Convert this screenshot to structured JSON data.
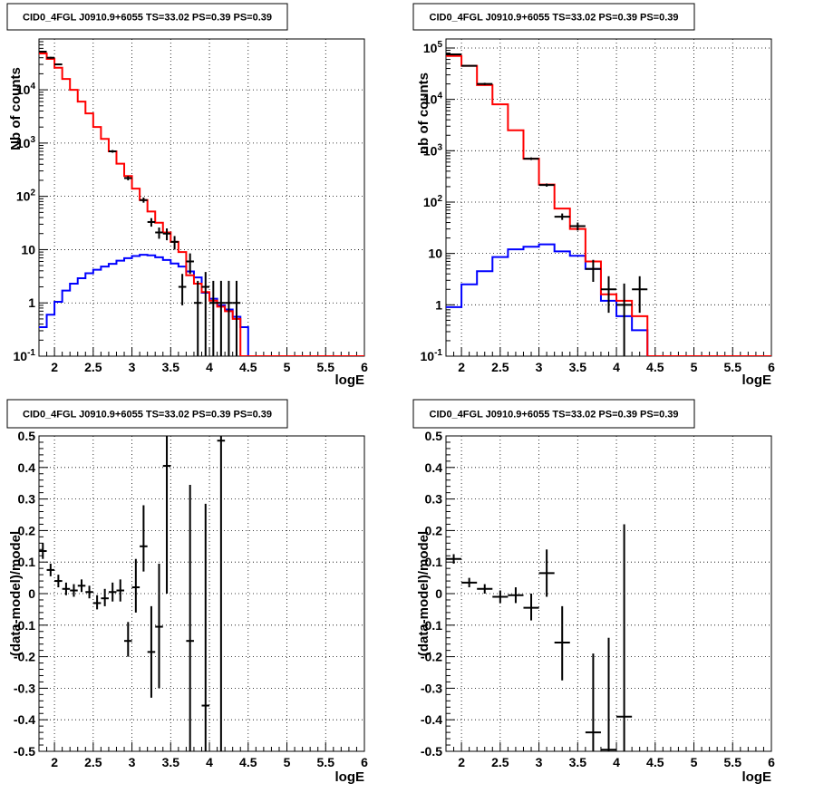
{
  "colors": {
    "data": "#000000",
    "total_model": "#ff0000",
    "source_model": "#0000ff",
    "grid": "#000000",
    "frame": "#000000"
  },
  "chart_data": [
    {
      "type": "line",
      "scale_y": "log",
      "title": "CID0_4FGL J0910.9+6055 TS=33.02 PS=0.39 PS=0.39",
      "xlabel": "logE",
      "ylabel": "Nb of counts",
      "xlim": [
        1.8,
        6
      ],
      "ylim": [
        0.1,
        90000
      ],
      "grid": true,
      "xticks": [
        "2",
        "2.5",
        "3",
        "3.5",
        "4",
        "4.5",
        "5",
        "5.5",
        "6"
      ],
      "yticks": [
        "10^-1",
        "1",
        "10",
        "10^2",
        "10^3",
        "10^4"
      ],
      "bin_edges": [
        1.8,
        1.9,
        2.0,
        2.1,
        2.2,
        2.3,
        2.4,
        2.5,
        2.6,
        2.7,
        2.8,
        2.9,
        3.0,
        3.1,
        3.2,
        3.3,
        3.4,
        3.5,
        3.6,
        3.7,
        3.8,
        3.9,
        4.0,
        4.1,
        4.2,
        4.3,
        4.4,
        4.5,
        4.6,
        4.7,
        4.8,
        4.9,
        5.0,
        5.1,
        5.2,
        5.3,
        5.4,
        5.5,
        5.6,
        5.7,
        5.8,
        5.9,
        6.0
      ],
      "series": [
        {
          "role": "total_model",
          "values": [
            48000,
            38000,
            26000,
            16000,
            10000,
            6000,
            3600,
            2000,
            1200,
            700,
            410,
            240,
            140,
            85,
            52,
            32,
            21,
            14,
            9,
            3.3,
            2.3,
            1.6,
            1.1,
            0.85,
            0.7,
            0.5,
            0.09,
            0.09,
            0.09,
            0.09,
            0.09,
            0.09,
            0.09,
            0.09,
            0.09,
            0.09,
            0.09,
            0.09,
            0.09,
            0.09,
            0.09,
            0.09
          ]
        },
        {
          "role": "source_model",
          "values": [
            0.35,
            0.6,
            1.05,
            1.7,
            2.3,
            2.9,
            3.6,
            4.2,
            4.8,
            5.4,
            6.2,
            6.9,
            7.6,
            8.0,
            7.8,
            7.2,
            6.4,
            5.5,
            4.8,
            3.9,
            3.0,
            1.55,
            1.2,
            0.9,
            0.75,
            0.55,
            0.35,
            0.09,
            0.09,
            0.09,
            0.09,
            0.09,
            0.09,
            0.09,
            0.09,
            0.09,
            0.09,
            0.09,
            0.09,
            0.09,
            0.09,
            0.09
          ]
        },
        {
          "role": "data",
          "points": [
            {
              "x": 1.85,
              "y": 52000,
              "lo": 50000,
              "hi": 54000
            },
            {
              "x": 1.95,
              "y": 40000,
              "lo": 38500,
              "hi": 41500
            },
            {
              "x": 2.05,
              "y": 30000,
              "lo": 29000,
              "hi": 31000
            },
            {
              "x": 2.75,
              "y": 700,
              "lo": 660,
              "hi": 740
            },
            {
              "x": 2.95,
              "y": 220,
              "lo": 200,
              "hi": 240
            },
            {
              "x": 3.15,
              "y": 85,
              "lo": 76,
              "hi": 95
            },
            {
              "x": 3.25,
              "y": 33,
              "lo": 27,
              "hi": 39
            },
            {
              "x": 3.35,
              "y": 21,
              "lo": 16,
              "hi": 26
            },
            {
              "x": 3.45,
              "y": 20,
              "lo": 15,
              "hi": 25
            },
            {
              "x": 3.55,
              "y": 14,
              "lo": 10,
              "hi": 18
            },
            {
              "x": 3.65,
              "y": 2,
              "lo": 0.9,
              "hi": 3.5
            },
            {
              "x": 3.75,
              "y": 6,
              "lo": 3.5,
              "hi": 8.5
            },
            {
              "x": 3.85,
              "y": 1,
              "lo": 0.1,
              "hi": 2.6
            },
            {
              "x": 3.95,
              "y": 2,
              "lo": 0.1,
              "hi": 3.8
            },
            {
              "x": 4.05,
              "y": 1,
              "lo": 0.1,
              "hi": 2.6
            },
            {
              "x": 4.15,
              "y": 1,
              "lo": 0.1,
              "hi": 2.6
            },
            {
              "x": 4.25,
              "y": 1,
              "lo": 0.1,
              "hi": 2.6
            },
            {
              "x": 4.35,
              "y": 1,
              "lo": 0.1,
              "hi": 2.6
            }
          ]
        }
      ]
    },
    {
      "type": "line",
      "scale_y": "log",
      "title": "CID0_4FGL J0910.9+6055 TS=33.02 PS=0.39 PS=0.39",
      "xlabel": "logE",
      "ylabel": "nb of counts",
      "xlim": [
        1.8,
        6
      ],
      "ylim": [
        0.1,
        150000
      ],
      "grid": true,
      "xticks": [
        "2",
        "2.5",
        "3",
        "3.5",
        "4",
        "4.5",
        "5",
        "5.5",
        "6"
      ],
      "yticks": [
        "10^-1",
        "1",
        "10",
        "10^2",
        "10^3",
        "10^4",
        "10^5"
      ],
      "bin_edges": [
        1.8,
        2.0,
        2.2,
        2.4,
        2.6,
        2.8,
        3.0,
        3.2,
        3.4,
        3.6,
        3.8,
        4.0,
        4.2,
        4.4,
        4.6,
        4.8,
        5.0,
        5.2,
        5.4,
        5.6,
        5.8,
        6.0
      ],
      "series": [
        {
          "role": "total_model",
          "values": [
            70000,
            45000,
            19000,
            8000,
            2500,
            700,
            220,
            75,
            30,
            7,
            1.6,
            1.2,
            0.6,
            0.1,
            0.09,
            0.09,
            0.09,
            0.09,
            0.09,
            0.09,
            0.09
          ]
        },
        {
          "role": "source_model",
          "values": [
            0.9,
            2.5,
            4.5,
            8.5,
            12,
            13.5,
            15,
            11,
            9,
            5,
            1.2,
            0.6,
            0.32,
            0.1,
            0.09,
            0.09,
            0.09,
            0.09,
            0.09,
            0.09,
            0.09
          ]
        },
        {
          "role": "data",
          "points": [
            {
              "x": 1.9,
              "y": 75000,
              "lo": 72000,
              "hi": 78000
            },
            {
              "x": 2.1,
              "y": 45000,
              "lo": 43500,
              "hi": 46500
            },
            {
              "x": 2.3,
              "y": 20000,
              "lo": 19000,
              "hi": 21000
            },
            {
              "x": 2.9,
              "y": 700,
              "lo": 660,
              "hi": 740
            },
            {
              "x": 3.1,
              "y": 215,
              "lo": 200,
              "hi": 230
            },
            {
              "x": 3.3,
              "y": 52,
              "lo": 45,
              "hi": 60
            },
            {
              "x": 3.5,
              "y": 34,
              "lo": 28,
              "hi": 40
            },
            {
              "x": 3.7,
              "y": 5,
              "lo": 2.8,
              "hi": 7.5
            },
            {
              "x": 3.9,
              "y": 2,
              "lo": 0.7,
              "hi": 3.6
            },
            {
              "x": 4.1,
              "y": 1,
              "lo": 0.1,
              "hi": 2.6
            },
            {
              "x": 4.3,
              "y": 2,
              "lo": 0.7,
              "hi": 3.6
            }
          ]
        }
      ]
    },
    {
      "type": "scatter",
      "title": "CID0_4FGL J0910.9+6055 TS=33.02 PS=0.39 PS=0.39",
      "xlabel": "logE",
      "ylabel": "(data-model)/model",
      "xlim": [
        1.8,
        6
      ],
      "ylim": [
        -0.5,
        0.5
      ],
      "grid": true,
      "xticks": [
        "2",
        "2.5",
        "3",
        "3.5",
        "4",
        "4.5",
        "5",
        "5.5",
        "6"
      ],
      "yticks": [
        "-0.5",
        "-0.4",
        "-0.3",
        "-0.2",
        "-0.1",
        "0",
        "0.1",
        "0.2",
        "0.3",
        "0.4",
        "0.5"
      ],
      "bin_width": 0.1,
      "points": [
        {
          "x": 1.85,
          "y": 0.135,
          "lo": 0.11,
          "hi": 0.16
        },
        {
          "x": 1.95,
          "y": 0.075,
          "lo": 0.055,
          "hi": 0.095
        },
        {
          "x": 2.05,
          "y": 0.04,
          "lo": 0.02,
          "hi": 0.06
        },
        {
          "x": 2.15,
          "y": 0.015,
          "lo": -0.005,
          "hi": 0.035
        },
        {
          "x": 2.25,
          "y": 0.01,
          "lo": -0.01,
          "hi": 0.03
        },
        {
          "x": 2.35,
          "y": 0.025,
          "lo": 0.005,
          "hi": 0.045
        },
        {
          "x": 2.45,
          "y": 0.005,
          "lo": -0.015,
          "hi": 0.025
        },
        {
          "x": 2.55,
          "y": -0.03,
          "lo": -0.05,
          "hi": -0.005
        },
        {
          "x": 2.65,
          "y": -0.015,
          "lo": -0.04,
          "hi": 0.015
        },
        {
          "x": 2.75,
          "y": 0.005,
          "lo": -0.025,
          "hi": 0.035
        },
        {
          "x": 2.85,
          "y": 0.01,
          "lo": -0.025,
          "hi": 0.045
        },
        {
          "x": 2.95,
          "y": -0.15,
          "lo": -0.2,
          "hi": -0.09
        },
        {
          "x": 3.05,
          "y": 0.02,
          "lo": -0.06,
          "hi": 0.11
        },
        {
          "x": 3.15,
          "y": 0.15,
          "lo": 0.07,
          "hi": 0.28
        },
        {
          "x": 3.25,
          "y": -0.185,
          "lo": -0.33,
          "hi": -0.04
        },
        {
          "x": 3.35,
          "y": -0.105,
          "lo": -0.3,
          "hi": 0.095
        },
        {
          "x": 3.45,
          "y": 0.405,
          "lo": 0.0,
          "hi": 0.5
        },
        {
          "x": 3.75,
          "y": -0.15,
          "lo": -0.5,
          "hi": 0.345
        },
        {
          "x": 3.95,
          "y": -0.355,
          "lo": -0.5,
          "hi": 0.285
        },
        {
          "x": 4.15,
          "y": 0.485,
          "lo": -0.5,
          "hi": 0.5
        }
      ]
    },
    {
      "type": "scatter",
      "title": "CID0_4FGL J0910.9+6055 TS=33.02 PS=0.39 PS=0.39",
      "xlabel": "logE",
      "ylabel": "(data-model)/model",
      "xlim": [
        1.8,
        6
      ],
      "ylim": [
        -0.5,
        0.5
      ],
      "grid": true,
      "xticks": [
        "2",
        "2.5",
        "3",
        "3.5",
        "4",
        "4.5",
        "5",
        "5.5",
        "6"
      ],
      "yticks": [
        "-0.5",
        "-0.4",
        "-0.3",
        "-0.2",
        "-0.1",
        "0",
        "0.1",
        "0.2",
        "0.3",
        "0.4",
        "0.5"
      ],
      "bin_width": 0.2,
      "points": [
        {
          "x": 1.9,
          "y": 0.11,
          "lo": 0.095,
          "hi": 0.125
        },
        {
          "x": 2.1,
          "y": 0.035,
          "lo": 0.02,
          "hi": 0.05
        },
        {
          "x": 2.3,
          "y": 0.015,
          "lo": 0.0,
          "hi": 0.03
        },
        {
          "x": 2.5,
          "y": -0.01,
          "lo": -0.03,
          "hi": 0.01
        },
        {
          "x": 2.7,
          "y": -0.005,
          "lo": -0.03,
          "hi": 0.02
        },
        {
          "x": 2.9,
          "y": -0.045,
          "lo": -0.085,
          "hi": 0.0
        },
        {
          "x": 3.1,
          "y": 0.065,
          "lo": -0.01,
          "hi": 0.14
        },
        {
          "x": 3.3,
          "y": -0.155,
          "lo": -0.275,
          "hi": -0.04
        },
        {
          "x": 3.7,
          "y": -0.44,
          "lo": -0.5,
          "hi": -0.19
        },
        {
          "x": 3.9,
          "y": -0.495,
          "lo": -0.5,
          "hi": -0.14
        },
        {
          "x": 4.1,
          "y": -0.39,
          "lo": -0.5,
          "hi": 0.22
        }
      ]
    }
  ]
}
